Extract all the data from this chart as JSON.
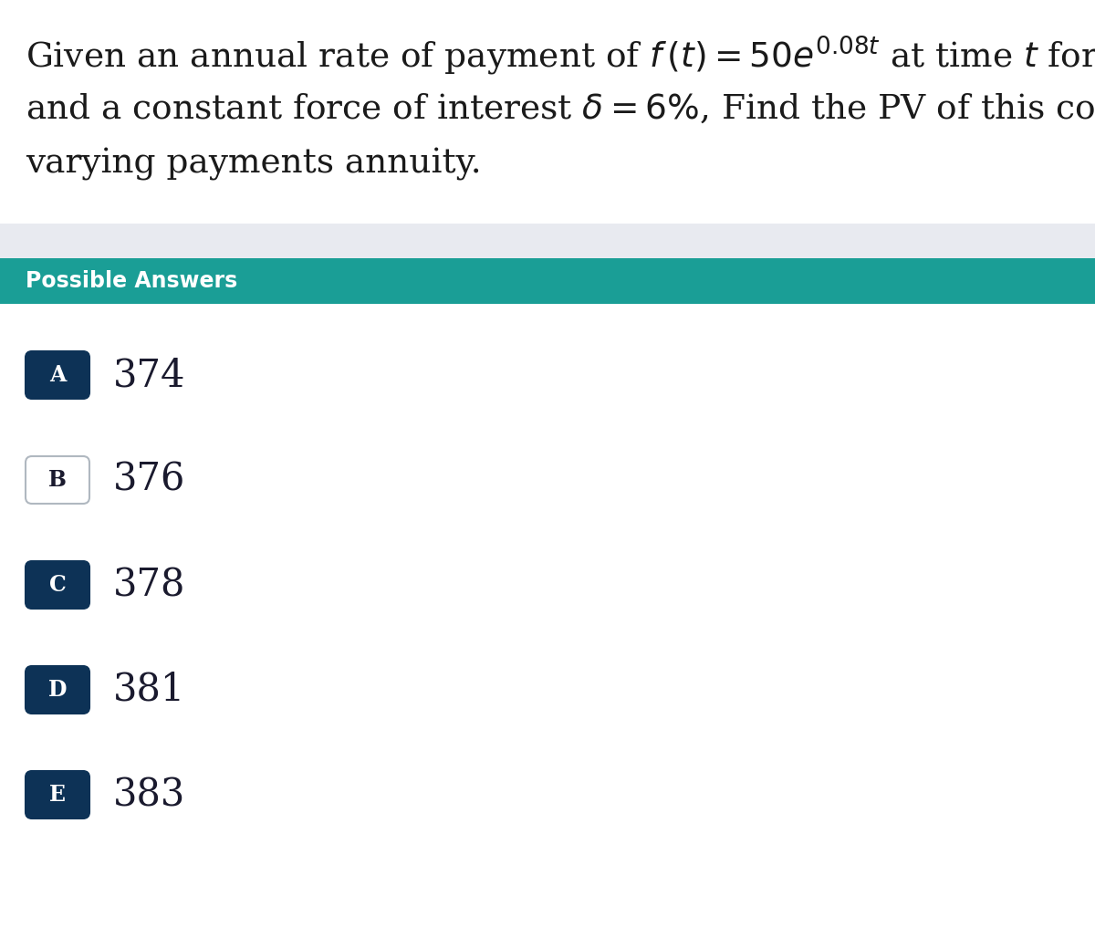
{
  "section_label": "Possible Answers",
  "section_bg_color": "#1a9e96",
  "section_text_color": "#ffffff",
  "answers": [
    "374",
    "376",
    "378",
    "381",
    "383"
  ],
  "answer_labels": [
    "A",
    "B",
    "C",
    "D",
    "E"
  ],
  "filled_answers": [
    true,
    false,
    true,
    true,
    true
  ],
  "box_filled_color": "#0d3256",
  "box_empty_fill": "#ffffff",
  "box_empty_edge": "#b0b8c0",
  "answer_text_color": "#1a1a2e",
  "label_text_color_filled": "#ffffff",
  "label_text_color_empty": "#1a1a2e",
  "bg_color": "#ffffff",
  "separator_color": "#e8eaf0",
  "fig_width": 12.0,
  "fig_height": 10.28,
  "question_fontsize": 27,
  "answer_fontsize": 30,
  "label_fontsize": 17,
  "banner_fontsize": 17
}
